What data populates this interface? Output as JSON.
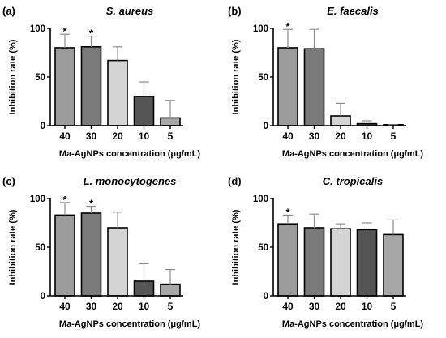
{
  "chart_data": [
    {
      "type": "bar",
      "panel_label": "(a)",
      "title": "S. aureus",
      "xlabel": "Ma-AgNPs concentration (μg/mL)",
      "ylabel": "Inhibition rate (%)",
      "categories": [
        "40",
        "30",
        "20",
        "10",
        "5"
      ],
      "values": [
        80,
        81,
        67,
        30,
        8
      ],
      "errors": [
        14,
        11,
        14,
        15,
        18
      ],
      "significance": [
        "*",
        "*",
        "",
        "",
        ""
      ],
      "bar_colors": [
        "#9b9b9b",
        "#7a7a7a",
        "#d4d4d4",
        "#555555",
        "#a7a7a7"
      ],
      "ylim": [
        0,
        100
      ],
      "yticks": [
        "0",
        "50",
        "100"
      ]
    },
    {
      "type": "bar",
      "panel_label": "(b)",
      "title": "E. faecalis",
      "xlabel": "Ma-AgNPs concentration (μg/mL)",
      "ylabel": "Inhibition rate (%)",
      "categories": [
        "40",
        "30",
        "20",
        "10",
        "5"
      ],
      "values": [
        80,
        79,
        10,
        2,
        0.5
      ],
      "errors": [
        19,
        20,
        13,
        3,
        0.5
      ],
      "significance": [
        "*",
        "",
        "",
        "",
        ""
      ],
      "bar_colors": [
        "#9b9b9b",
        "#7a7a7a",
        "#d4d4d4",
        "#555555",
        "#a7a7a7"
      ],
      "ylim": [
        0,
        100
      ],
      "yticks": [
        "0",
        "50",
        "100"
      ]
    },
    {
      "type": "bar",
      "panel_label": "(c)",
      "title": "L. monocytogenes",
      "xlabel": "Ma-AgNPs concentration (μg/mL)",
      "ylabel": "Inhibition rate (%)",
      "categories": [
        "40",
        "30",
        "20",
        "10",
        "5"
      ],
      "values": [
        83,
        85,
        70,
        15,
        12
      ],
      "errors": [
        13,
        7,
        16,
        18,
        15
      ],
      "significance": [
        "*",
        "*",
        "",
        "",
        ""
      ],
      "bar_colors": [
        "#9b9b9b",
        "#7a7a7a",
        "#d4d4d4",
        "#555555",
        "#a7a7a7"
      ],
      "ylim": [
        0,
        100
      ],
      "yticks": [
        "0",
        "50",
        "100"
      ]
    },
    {
      "type": "bar",
      "panel_label": "(d)",
      "title": "C. tropicalis",
      "xlabel": "Ma-AgNPs concentration (μg/mL)",
      "ylabel": "Inhibition rate (%)",
      "categories": [
        "40",
        "30",
        "20",
        "10",
        "5"
      ],
      "values": [
        74,
        70,
        69,
        68,
        63
      ],
      "errors": [
        9,
        14,
        5,
        7,
        15
      ],
      "significance": [
        "*",
        "",
        "",
        "",
        ""
      ],
      "bar_colors": [
        "#9b9b9b",
        "#7a7a7a",
        "#d4d4d4",
        "#555555",
        "#a7a7a7"
      ],
      "ylim": [
        0,
        100
      ],
      "yticks": [
        "0",
        "50",
        "100"
      ]
    }
  ]
}
